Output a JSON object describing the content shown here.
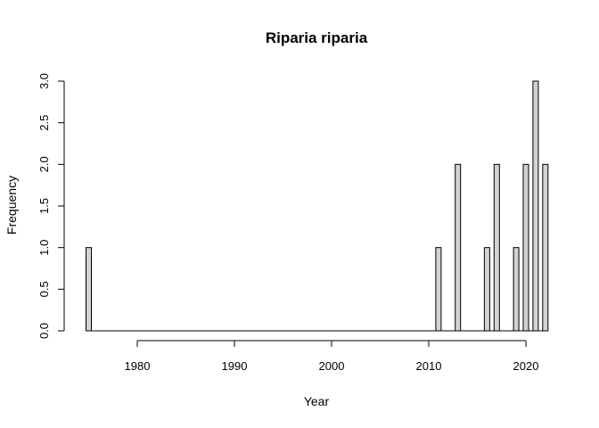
{
  "chart_data": {
    "type": "bar",
    "title": "Riparia riparia",
    "xlabel": "Year",
    "ylabel": "Frequency",
    "xlim": [
      1975,
      2022
    ],
    "ylim": [
      0,
      3
    ],
    "x_ticks": [
      1980,
      1990,
      2000,
      2010,
      2020
    ],
    "y_ticks": [
      "0.0",
      "0.5",
      "1.0",
      "1.5",
      "2.0",
      "2.5",
      "3.0"
    ],
    "x": [
      1975,
      2011,
      2013,
      2016,
      2017,
      2019,
      2020,
      2021,
      2022
    ],
    "values": [
      1,
      1,
      2,
      1,
      2,
      1,
      2,
      3,
      2
    ],
    "bar_color": "#d3d3d3",
    "grid": false,
    "legend": "none"
  }
}
